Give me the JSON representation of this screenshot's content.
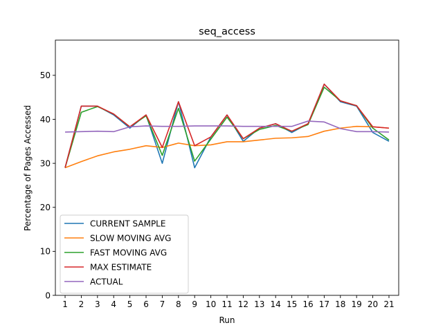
{
  "chart_data": {
    "type": "line",
    "title": "seq_access",
    "xlabel": "Run",
    "ylabel": "Percentage of Pages Accessed",
    "x": [
      1,
      2,
      3,
      4,
      5,
      6,
      7,
      8,
      9,
      10,
      11,
      12,
      13,
      14,
      15,
      16,
      17,
      18,
      19,
      20,
      21
    ],
    "xlim": [
      0.4,
      21.6
    ],
    "ylim": [
      0,
      58
    ],
    "yticks": [
      0,
      10,
      20,
      30,
      40,
      50
    ],
    "grid": false,
    "legend_position": "lower-left",
    "series": [
      {
        "name": "CURRENT SAMPLE",
        "color": "#1f77b4",
        "values": [
          29,
          43,
          43,
          41,
          38,
          41,
          30,
          44,
          29,
          36,
          41,
          35,
          38,
          39,
          37,
          39,
          48,
          44,
          43,
          37,
          35
        ]
      },
      {
        "name": "SLOW MOVING AVG",
        "color": "#ff7f0e",
        "values": [
          29,
          30.4,
          31.7,
          32.6,
          33.2,
          34,
          33.6,
          34.6,
          34,
          34.2,
          34.9,
          34.9,
          35.3,
          35.7,
          35.8,
          36.1,
          37.3,
          38,
          38.4,
          38.3,
          38
        ]
      },
      {
        "name": "FAST MOVING AVG",
        "color": "#2ca02c",
        "values": [
          29,
          41.6,
          42.9,
          41.2,
          38.3,
          40.8,
          31.8,
          42.5,
          30.5,
          35.5,
          40.5,
          35.6,
          37.7,
          38.6,
          37.3,
          38.8,
          47.3,
          44.2,
          43.1,
          38,
          35.3
        ]
      },
      {
        "name": "MAX ESTIMATE",
        "color": "#d62728",
        "values": [
          29,
          43,
          43,
          41.2,
          38.3,
          41,
          33.6,
          44,
          34,
          36,
          41,
          35.6,
          38,
          39,
          37.3,
          39,
          48,
          44.2,
          43.1,
          38.3,
          38
        ]
      },
      {
        "name": "ACTUAL",
        "color": "#9467bd",
        "values": [
          37.1,
          37.2,
          37.3,
          37.2,
          38.3,
          38.5,
          38.4,
          38.4,
          38.5,
          38.5,
          38.5,
          38.4,
          38.4,
          38.4,
          38.4,
          39.6,
          39.4,
          37.9,
          37.2,
          37.2,
          37.1
        ]
      }
    ]
  }
}
